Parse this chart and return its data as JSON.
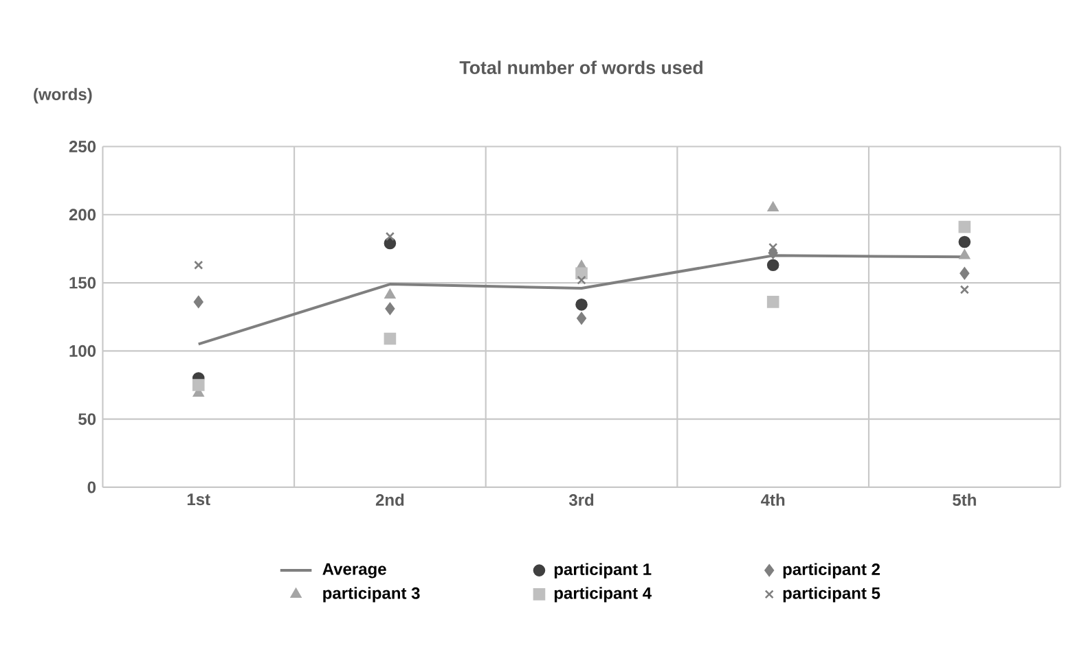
{
  "chart_data": {
    "type": "scatter",
    "title": "Total number of words used",
    "ylabel": "(words)",
    "categories": [
      "1st",
      "2nd",
      "3rd",
      "4th",
      "5th"
    ],
    "ylim": [
      0,
      250
    ],
    "yticks": [
      0,
      50,
      100,
      150,
      200,
      250
    ],
    "grid": true,
    "legend": "bottom",
    "series": [
      {
        "name": "Average",
        "type": "line",
        "color": "#7f7f7f",
        "values": [
          105,
          149,
          146,
          170,
          169
        ]
      },
      {
        "name": "participant 1",
        "marker": "circle",
        "color": "#404040",
        "values": [
          80,
          179,
          134,
          163,
          180
        ]
      },
      {
        "name": "participant 2",
        "marker": "diamond",
        "color": "#7f7f7f",
        "values": [
          136,
          131,
          124,
          172,
          157
        ]
      },
      {
        "name": "participant 3",
        "marker": "triangle",
        "color": "#a5a5a5",
        "values": [
          69,
          141,
          162,
          205,
          170
        ]
      },
      {
        "name": "participant 4",
        "marker": "square",
        "color": "#bfbfbf",
        "values": [
          75,
          109,
          157,
          136,
          191
        ]
      },
      {
        "name": "participant 5",
        "marker": "cross",
        "color": "#7f7f7f",
        "values": [
          163,
          184,
          152,
          176,
          145
        ]
      }
    ]
  }
}
